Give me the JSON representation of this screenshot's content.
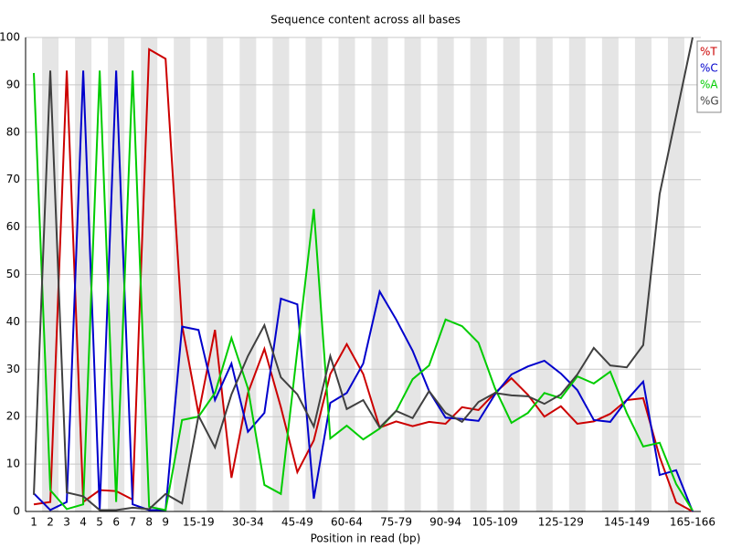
{
  "chart_data": {
    "type": "line",
    "title": "Sequence content across all bases",
    "x_label": "Position in read (bp)",
    "categories": [
      "1",
      "2",
      "3",
      "4",
      "5",
      "6",
      "7",
      "8",
      "9",
      null,
      "15-19",
      null,
      null,
      "30-34",
      null,
      null,
      "45-49",
      null,
      null,
      "60-64",
      null,
      null,
      "75-79",
      null,
      null,
      "90-94",
      null,
      null,
      "105-109",
      null,
      null,
      null,
      "125-129",
      null,
      null,
      null,
      "145-149",
      null,
      null,
      null,
      "165-166"
    ],
    "ylim": [
      0,
      100
    ],
    "yticks": [
      0,
      10,
      20,
      30,
      40,
      50,
      60,
      70,
      80,
      90,
      100
    ],
    "grid": true,
    "legend": "top-right",
    "series": [
      {
        "name": "%T",
        "color": "#cc0000",
        "values": [
          1.5,
          2,
          93,
          2,
          4.5,
          4.3,
          2.5,
          97.5,
          95.5,
          39.3,
          20.6,
          38.3,
          7.1,
          25,
          34.3,
          22,
          8.3,
          15,
          29,
          35.3,
          29,
          17.7,
          19,
          18,
          18.9,
          18.5,
          22,
          21.4,
          25,
          28.1,
          24.6,
          20,
          22.2,
          18.5,
          19,
          20.6,
          23.5,
          23.9,
          11.5,
          1.9,
          0
        ]
      },
      {
        "name": "%C",
        "color": "#0000cc",
        "values": [
          3.8,
          0.3,
          2,
          93,
          0.3,
          93,
          1.5,
          0.3,
          0.3,
          39,
          38.3,
          23.5,
          31.2,
          16.8,
          20.8,
          44.9,
          43.7,
          2.7,
          22.9,
          25,
          31.2,
          46.4,
          40.5,
          33.9,
          25.4,
          19.8,
          19.5,
          19.1,
          24.7,
          28.9,
          30.6,
          31.8,
          29.1,
          25.6,
          19.3,
          18.9,
          23.5,
          27.4,
          7.7,
          8.7,
          0
        ]
      },
      {
        "name": "%A",
        "color": "#00cc00",
        "values": [
          92.5,
          4.5,
          0.5,
          1.5,
          93,
          2,
          93,
          1,
          0.3,
          19.3,
          20,
          25,
          36.6,
          26,
          5.6,
          3.7,
          34,
          63.8,
          15.4,
          18.1,
          15.2,
          17.5,
          21.2,
          27.9,
          30.8,
          40.5,
          39.1,
          35.6,
          26,
          18.7,
          20.8,
          25,
          23.9,
          28.5,
          27,
          29.5,
          20.8,
          13.7,
          14.5,
          5.8,
          0.2
        ]
      },
      {
        "name": "%G",
        "color": "#404040",
        "values": [
          3.5,
          93,
          4,
          3.2,
          0.3,
          0.3,
          0.8,
          0.5,
          3.7,
          1.7,
          20.2,
          13.5,
          24.7,
          32.8,
          39.3,
          28.3,
          24.7,
          17.9,
          32.8,
          21.6,
          23.5,
          17.7,
          21.2,
          19.7,
          25.4,
          20.8,
          18.9,
          23.1,
          25,
          24.5,
          24.3,
          22.7,
          24.7,
          28.9,
          34.5,
          30.8,
          30.4,
          35.1,
          67,
          83.5,
          100
        ]
      }
    ]
  }
}
